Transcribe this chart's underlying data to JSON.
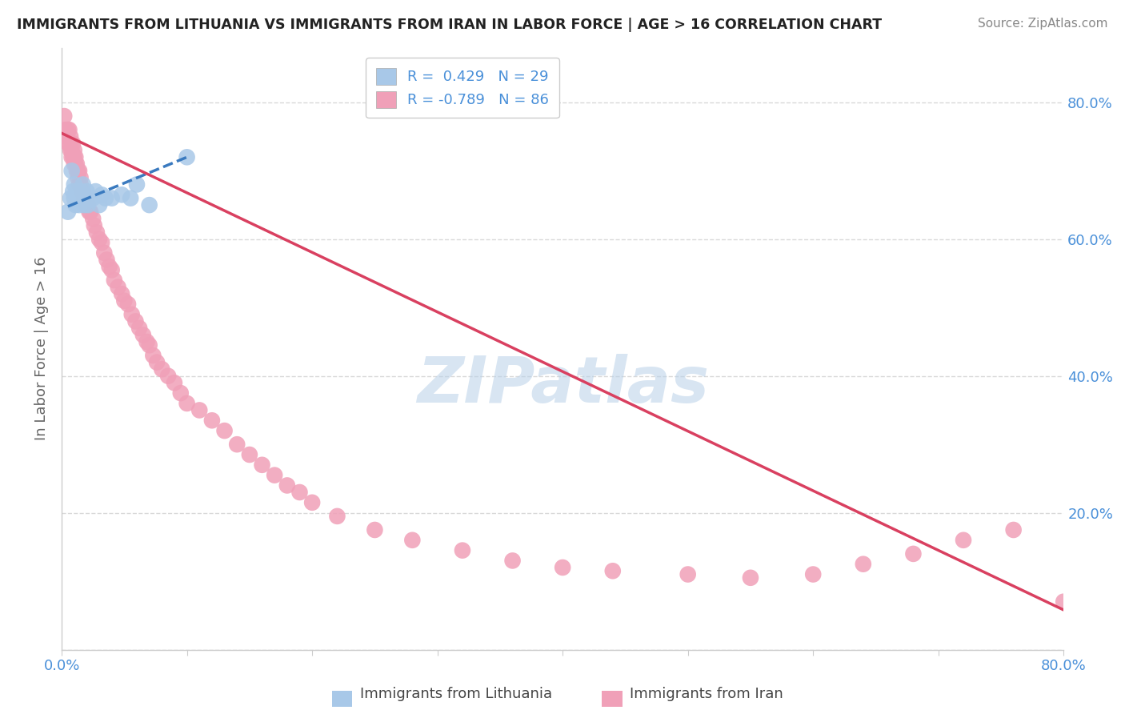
{
  "title": "IMMIGRANTS FROM LITHUANIA VS IMMIGRANTS FROM IRAN IN LABOR FORCE | AGE > 16 CORRELATION CHART",
  "source": "Source: ZipAtlas.com",
  "ylabel": "In Labor Force | Age > 16",
  "xlim": [
    0.0,
    0.8
  ],
  "ylim": [
    0.0,
    0.88
  ],
  "lithuania_color": "#a8c8e8",
  "iran_color": "#f0a0b8",
  "lithuania_line_color": "#3a7abf",
  "iran_line_color": "#d94060",
  "R_lithuania": 0.429,
  "N_lithuania": 29,
  "R_iran": -0.789,
  "N_iran": 86,
  "legend_label_1": "Immigrants from Lithuania",
  "legend_label_2": "Immigrants from Iran",
  "watermark": "ZIPatlas",
  "background_color": "#ffffff",
  "grid_color": "#d0d0d0",
  "lithuania_x": [
    0.005,
    0.007,
    0.008,
    0.009,
    0.01,
    0.01,
    0.011,
    0.012,
    0.013,
    0.014,
    0.015,
    0.016,
    0.017,
    0.018,
    0.019,
    0.02,
    0.021,
    0.022,
    0.025,
    0.027,
    0.03,
    0.032,
    0.035,
    0.04,
    0.048,
    0.055,
    0.06,
    0.07,
    0.1
  ],
  "lithuania_y": [
    0.64,
    0.66,
    0.7,
    0.67,
    0.66,
    0.68,
    0.65,
    0.67,
    0.66,
    0.65,
    0.67,
    0.66,
    0.68,
    0.65,
    0.66,
    0.67,
    0.65,
    0.66,
    0.66,
    0.67,
    0.65,
    0.665,
    0.66,
    0.66,
    0.665,
    0.66,
    0.68,
    0.65,
    0.72
  ],
  "iran_x": [
    0.002,
    0.003,
    0.004,
    0.005,
    0.005,
    0.006,
    0.006,
    0.007,
    0.007,
    0.008,
    0.008,
    0.009,
    0.009,
    0.01,
    0.01,
    0.01,
    0.011,
    0.011,
    0.012,
    0.012,
    0.013,
    0.013,
    0.014,
    0.014,
    0.015,
    0.015,
    0.016,
    0.017,
    0.018,
    0.019,
    0.02,
    0.021,
    0.022,
    0.023,
    0.025,
    0.026,
    0.028,
    0.03,
    0.032,
    0.034,
    0.036,
    0.038,
    0.04,
    0.042,
    0.045,
    0.048,
    0.05,
    0.053,
    0.056,
    0.059,
    0.062,
    0.065,
    0.068,
    0.07,
    0.073,
    0.076,
    0.08,
    0.085,
    0.09,
    0.095,
    0.1,
    0.11,
    0.12,
    0.13,
    0.14,
    0.15,
    0.16,
    0.17,
    0.18,
    0.19,
    0.2,
    0.22,
    0.25,
    0.28,
    0.32,
    0.36,
    0.4,
    0.44,
    0.5,
    0.55,
    0.6,
    0.64,
    0.68,
    0.72,
    0.76,
    0.8
  ],
  "iran_y": [
    0.78,
    0.76,
    0.75,
    0.74,
    0.76,
    0.74,
    0.76,
    0.73,
    0.75,
    0.73,
    0.72,
    0.72,
    0.74,
    0.72,
    0.71,
    0.73,
    0.71,
    0.72,
    0.7,
    0.71,
    0.7,
    0.69,
    0.7,
    0.68,
    0.69,
    0.68,
    0.67,
    0.67,
    0.66,
    0.66,
    0.65,
    0.65,
    0.64,
    0.64,
    0.63,
    0.62,
    0.61,
    0.6,
    0.595,
    0.58,
    0.57,
    0.56,
    0.555,
    0.54,
    0.53,
    0.52,
    0.51,
    0.505,
    0.49,
    0.48,
    0.47,
    0.46,
    0.45,
    0.445,
    0.43,
    0.42,
    0.41,
    0.4,
    0.39,
    0.375,
    0.36,
    0.35,
    0.335,
    0.32,
    0.3,
    0.285,
    0.27,
    0.255,
    0.24,
    0.23,
    0.215,
    0.195,
    0.175,
    0.16,
    0.145,
    0.13,
    0.12,
    0.115,
    0.11,
    0.105,
    0.11,
    0.125,
    0.14,
    0.16,
    0.175,
    0.07
  ],
  "iran_line_x0": 0.0,
  "iran_line_y0": 0.755,
  "iran_line_x1": 0.8,
  "iran_line_y1": 0.058,
  "lith_line_x0": 0.005,
  "lith_line_y0": 0.648,
  "lith_line_x1": 0.1,
  "lith_line_y1": 0.72
}
